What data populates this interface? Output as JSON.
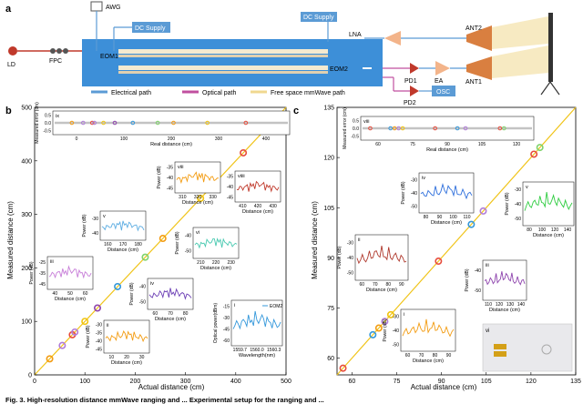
{
  "panel_a": {
    "label": "a",
    "labels": {
      "ld": "LD",
      "fpc": "FPC",
      "awg": "AWG",
      "dc_supply_left": "DC Supply",
      "eom1": "EOM1",
      "eom2": "EOM2",
      "dc_supply_right": "DC Supply",
      "lna": "LNA",
      "ant2": "ANT2",
      "pd1": "PD1",
      "ea": "EA",
      "ant1": "ANT1",
      "pd2": "PD2",
      "osc": "OSC"
    },
    "legend": [
      "Electrical path",
      "Optical path",
      "Free space mmWave path"
    ],
    "colors": {
      "electrical": "#5b9bd5",
      "optical": "#c04f9f",
      "freespace": "#f0d890",
      "chip": "#3d8fd8",
      "box_blue": "#5b9bd5",
      "horn": "#d2691e"
    }
  },
  "chart_data": [
    {
      "panel": "b",
      "type": "scatter",
      "xlabel": "Actual distance (cm)",
      "ylabel": "Measured distance (cm)",
      "xlim": [
        0,
        500
      ],
      "ylim": [
        0,
        500
      ],
      "xticks": [
        0,
        100,
        200,
        300,
        400,
        500
      ],
      "yticks": [
        0,
        100,
        200,
        300,
        400,
        500
      ],
      "series": [
        {
          "name": "measurements",
          "x": [
            30,
            55,
            75,
            80,
            100,
            125,
            165,
            220,
            255,
            330,
            415
          ],
          "y": [
            30,
            55,
            75,
            80,
            100,
            125,
            165,
            220,
            255,
            330,
            415
          ],
          "colors": [
            "#f39c12",
            "#b07cd8",
            "#e74c3c",
            "#b07cd8",
            "#f1c40f",
            "#8e44ad",
            "#3498db",
            "#7fd36b",
            "#f39c12",
            "#f1c40f",
            "#e74c3c"
          ]
        }
      ],
      "insets": [
        {
          "id": "ix",
          "xlabel": "Real distance (cm)",
          "ylabel": "Measured error (cm)",
          "xticks": [
            "0",
            "100",
            "200",
            "300",
            "400"
          ],
          "yticks": [
            "0.5",
            "0.0",
            "-0.5"
          ]
        },
        {
          "id": "viii",
          "xlabel": "Distance (cm)",
          "ylabel": "Power (dB)",
          "xticks": [
            "310",
            "320",
            "330"
          ],
          "yticks": [
            "-35",
            "-40",
            "-45"
          ]
        },
        {
          "id": "viiii",
          "xlabel": "Distance (cm)",
          "xticks": [
            "410",
            "420",
            "430"
          ],
          "yticks": [
            "-35",
            "-40",
            "-45"
          ]
        },
        {
          "id": "v",
          "xlabel": "Distance (cm)",
          "ylabel": "Power (dB)",
          "xticks": [
            "160",
            "170",
            "180"
          ],
          "yticks": [
            "-30",
            "-40"
          ]
        },
        {
          "id": "vi",
          "xlabel": "Distance (cm)",
          "ylabel": "Power (dB)",
          "xticks": [
            "210",
            "220",
            "230"
          ],
          "yticks": [
            "-40",
            "-50"
          ]
        },
        {
          "id": "iii",
          "xlabel": "Distance (cm)",
          "ylabel": "Power (dB)",
          "xticks": [
            "40",
            "50",
            "60"
          ],
          "yticks": [
            "-25",
            "-35",
            "-45"
          ]
        },
        {
          "id": "iv",
          "xlabel": "Distance (cm)",
          "ylabel": "Power (dB)",
          "xticks": [
            "60",
            "70",
            "80"
          ],
          "yticks": [
            "-40",
            "-50"
          ]
        },
        {
          "id": "ii",
          "xlabel": "Distance (cm)",
          "ylabel": "Power (dB)",
          "xticks": [
            "10",
            "20",
            "30"
          ],
          "yticks": [
            "-30",
            "-35",
            "-40",
            "-45"
          ]
        },
        {
          "id": "i",
          "xlabel": "Wavelength(nm)",
          "ylabel": "Optical power(dBm)",
          "legend": "EOM2",
          "xticks": [
            "1559.7",
            "1560.0",
            "1560.3"
          ],
          "yticks": [
            "-15",
            "-30",
            "-45",
            "-60"
          ]
        }
      ]
    },
    {
      "panel": "c",
      "type": "scatter",
      "xlabel": "Actual distance (cm)",
      "ylabel": "Measured distance (cm)",
      "xlim": [
        55,
        135
      ],
      "ylim": [
        55,
        135
      ],
      "xticks": [
        60,
        75,
        90,
        105,
        120,
        135
      ],
      "yticks": [
        60,
        75,
        90,
        105,
        120,
        135
      ],
      "series": [
        {
          "name": "measurements",
          "x": [
            57,
            67,
            69,
            71,
            73,
            89,
            100,
            104,
            121,
            123
          ],
          "y": [
            57,
            67,
            69,
            71,
            73,
            89,
            100,
            104,
            121,
            123
          ],
          "colors": [
            "#e74c3c",
            "#3498db",
            "#f39c12",
            "#b07cd8",
            "#f1c40f",
            "#e74c3c",
            "#3498db",
            "#b07cd8",
            "#e74c3c",
            "#7fd36b"
          ]
        }
      ],
      "insets": [
        {
          "id": "viii",
          "xlabel": "Real distance (cm)",
          "ylabel": "Measured error (cm)",
          "xticks": [
            "60",
            "75",
            "90",
            "105",
            "120"
          ],
          "yticks": [
            "0.5",
            "0.0",
            "-0.5"
          ]
        },
        {
          "id": "iv",
          "xlabel": "Distance (cm)",
          "ylabel": "Power (dB)",
          "xticks": [
            "80",
            "90",
            "100",
            "110"
          ],
          "yticks": [
            "-30",
            "-40",
            "-50"
          ]
        },
        {
          "id": "v",
          "xlabel": "Distance (cm)",
          "ylabel": "Power (dB)",
          "xticks": [
            "80",
            "100",
            "120",
            "140"
          ],
          "yticks": [
            "-30",
            "-40",
            "-50"
          ]
        },
        {
          "id": "ii",
          "xlabel": "Distance (cm)",
          "ylabel": "Power (dB)",
          "xticks": [
            "60",
            "70",
            "80",
            "90"
          ],
          "yticks": [
            "-30",
            "-40",
            "-50"
          ]
        },
        {
          "id": "iii",
          "xlabel": "Distance (cm)",
          "ylabel": "Power (dB)",
          "xticks": [
            "110",
            "120",
            "130",
            "140"
          ],
          "yticks": [
            "-40",
            "-50"
          ]
        },
        {
          "id": "i",
          "xlabel": "Distance (cm)",
          "ylabel": "Power (dB)",
          "xticks": [
            "60",
            "70",
            "80",
            "90"
          ],
          "yticks": [
            "-30",
            "-40",
            "-50"
          ]
        },
        {
          "id": "vi"
        }
      ]
    }
  ],
  "caption": "Fig. 3. High-resolution distance mmWave ranging and ... Experimental setup for the ranging and ..."
}
